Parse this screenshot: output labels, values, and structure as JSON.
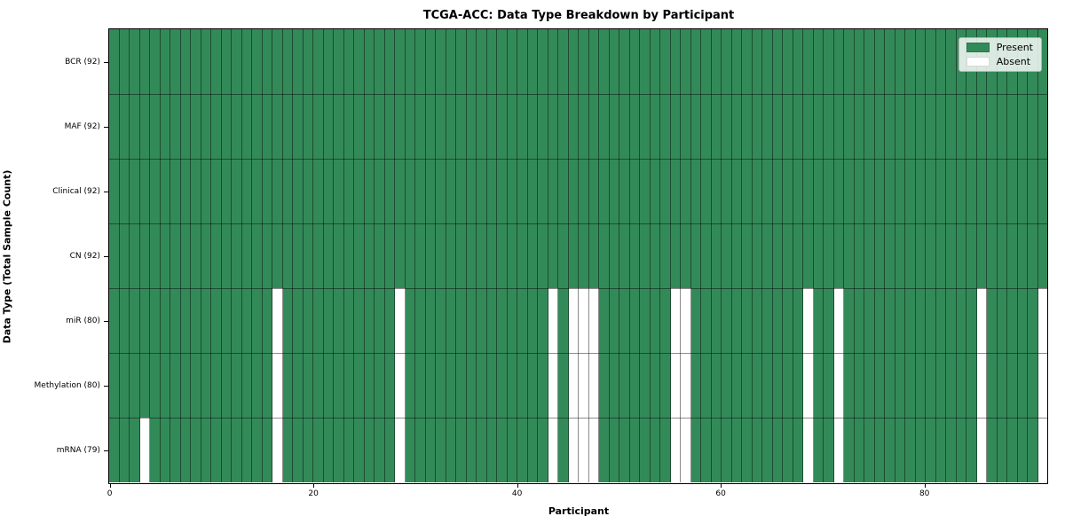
{
  "chart_data": {
    "type": "heatmap",
    "title": "TCGA-ACC: Data Type Breakdown by Participant",
    "xlabel": "Participant",
    "ylabel": "Data Type (Total Sample Count)",
    "x_axis": {
      "min": 0,
      "max": 92,
      "ticks": [
        0,
        20,
        40,
        60,
        80
      ]
    },
    "n_participants": 92,
    "rows": [
      {
        "label": "BCR (92)",
        "present_count": 92,
        "absent_participants": []
      },
      {
        "label": "MAF (92)",
        "present_count": 92,
        "absent_participants": []
      },
      {
        "label": "Clinical (92)",
        "present_count": 92,
        "absent_participants": []
      },
      {
        "label": "CN (92)",
        "present_count": 92,
        "absent_participants": []
      },
      {
        "label": "miR (80)",
        "present_count": 80,
        "absent_participants": [
          16,
          28,
          43,
          45,
          46,
          47,
          55,
          56,
          68,
          71,
          85,
          91
        ]
      },
      {
        "label": "Methylation (80)",
        "present_count": 80,
        "absent_participants": [
          16,
          28,
          43,
          45,
          46,
          47,
          55,
          56,
          68,
          71,
          85,
          91
        ]
      },
      {
        "label": "mRNA (79)",
        "present_count": 79,
        "absent_participants": [
          3,
          16,
          28,
          43,
          45,
          46,
          47,
          55,
          56,
          68,
          71,
          85,
          91
        ]
      }
    ],
    "legend": {
      "position": "upper right",
      "items": [
        {
          "label": "Present",
          "color": "#338a59"
        },
        {
          "label": "Absent",
          "color": "#ffffff"
        }
      ]
    },
    "colors": {
      "present": "#338a59",
      "absent": "#ffffff",
      "gridline": "rgba(0,0,0,0.45)",
      "frame": "#000000"
    }
  }
}
